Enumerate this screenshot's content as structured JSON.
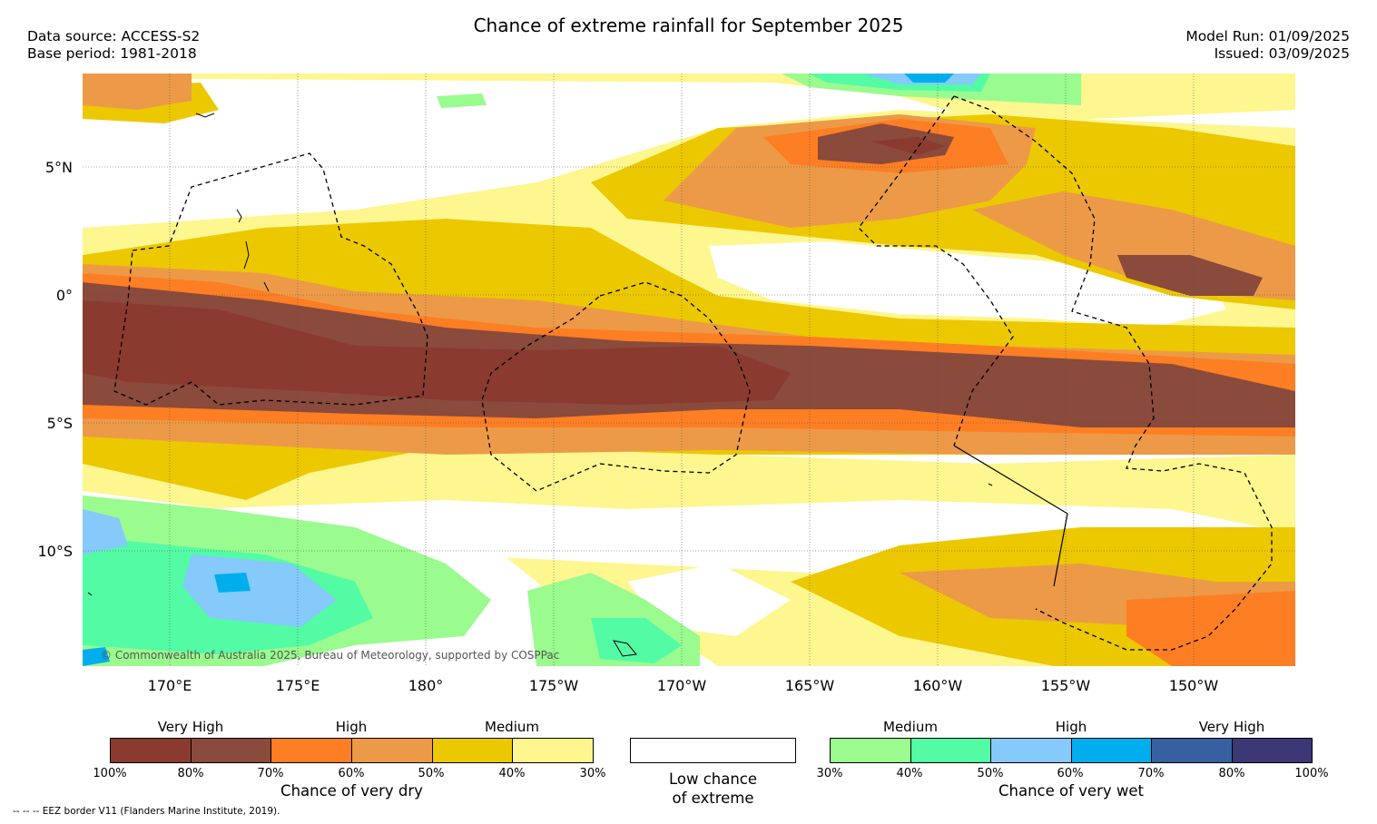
{
  "header": {
    "title": "Chance of extreme rainfall for September 2025",
    "data_source": "Data source: ACCESS-S2",
    "base_period": "Base period: 1981-2018",
    "model_run": "Model Run: 01/09/2025",
    "issued": "Issued: 03/09/2025"
  },
  "map": {
    "lat_labels": [
      "5°N",
      "0°",
      "5°S",
      "10°S"
    ],
    "lon_labels": [
      "170°E",
      "175°E",
      "180°",
      "175°W",
      "170°W",
      "165°W",
      "160°W",
      "155°W",
      "150°W"
    ],
    "copyright": "© Commonwealth of Australia 2025, Bureau of Meteorology, supported by COSPPac"
  },
  "legend": {
    "dry": {
      "categories": [
        "Very High",
        "High",
        "Medium"
      ],
      "ticks": [
        "100%",
        "80%",
        "70%",
        "60%",
        "50%",
        "40%",
        "30%"
      ],
      "colors": [
        "#8b3a2f",
        "#8a4a3c",
        "#fd7e23",
        "#ec9a47",
        "#ecc800",
        "#fef68f"
      ],
      "caption": "Chance of very dry"
    },
    "low": {
      "caption_line1": "Low chance",
      "caption_line2": "of extreme"
    },
    "wet": {
      "categories": [
        "Medium",
        "High",
        "Very High"
      ],
      "ticks": [
        "30%",
        "40%",
        "50%",
        "60%",
        "70%",
        "80%",
        "100%"
      ],
      "colors": [
        "#9afb8e",
        "#53fba5",
        "#86c9fb",
        "#00aeee",
        "#3660a0",
        "#3b3875"
      ],
      "caption": "Chance of very wet"
    },
    "footnote": "--  --  -- EEZ border V11 (Flanders Marine Institute, 2019)."
  }
}
